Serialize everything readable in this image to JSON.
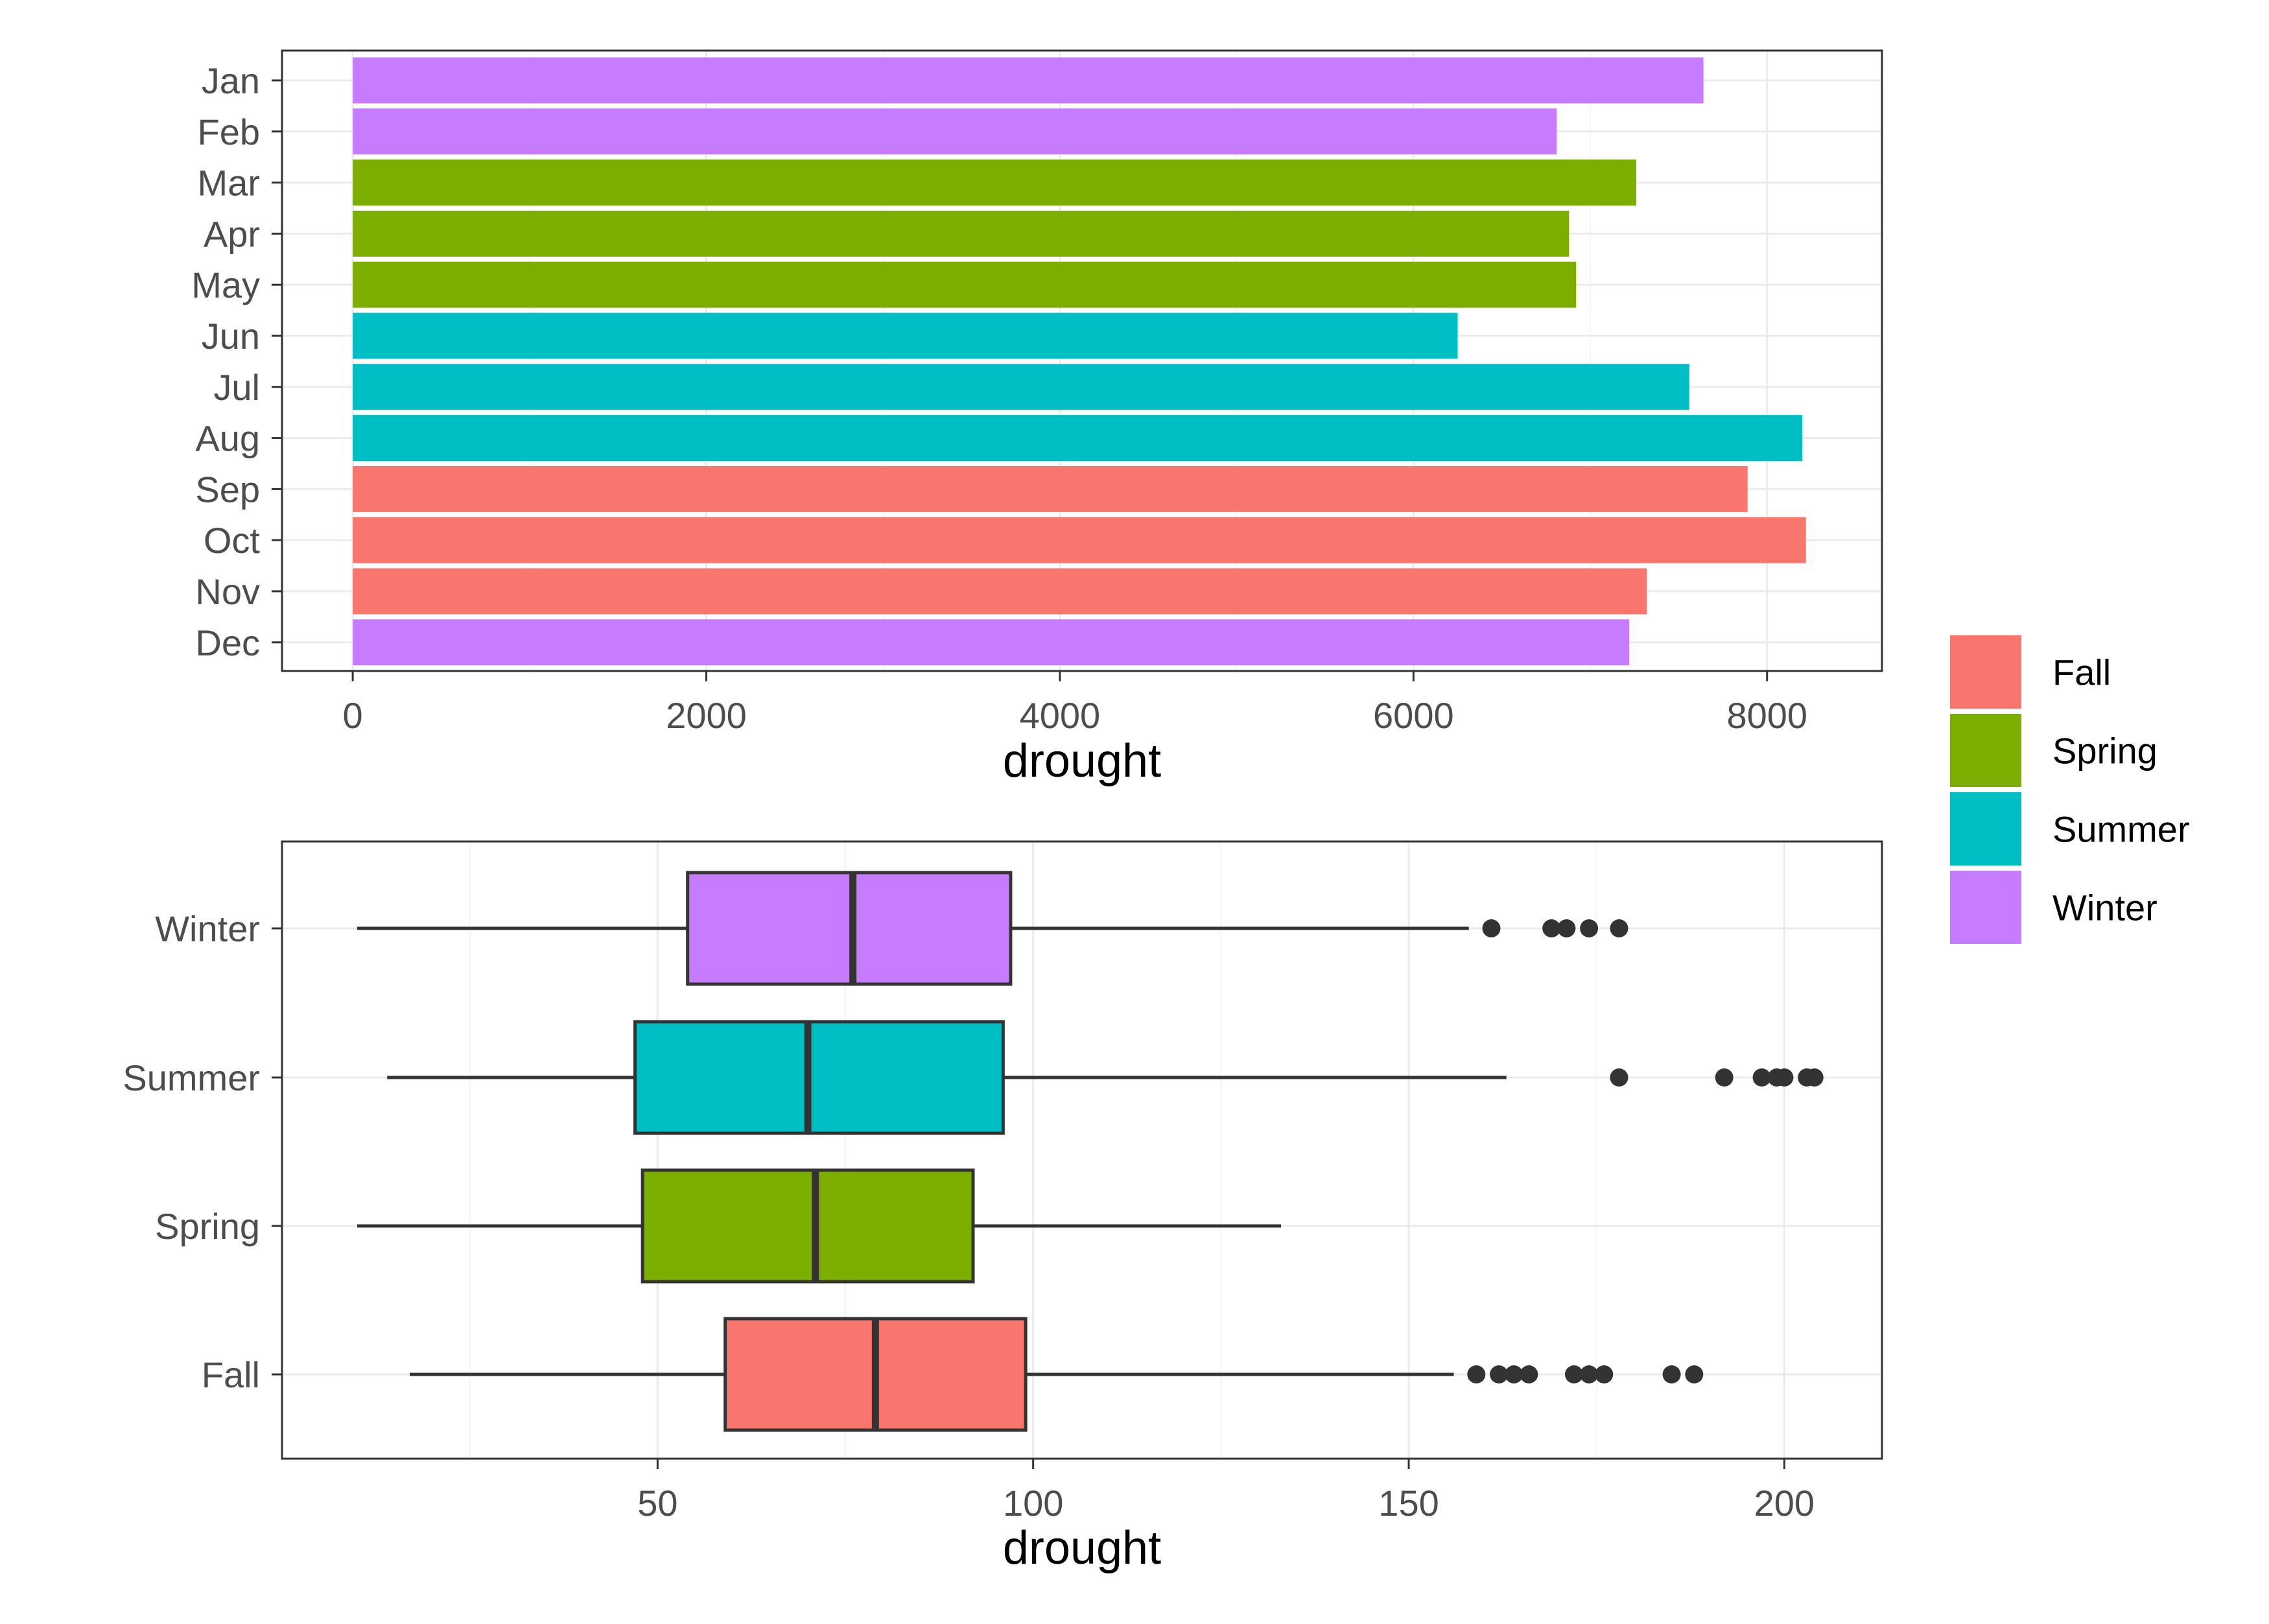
{
  "chart_data": [
    {
      "type": "bar",
      "orientation": "horizontal",
      "title": "",
      "xlabel": "drought",
      "ylabel": "",
      "categories": [
        "Jan",
        "Feb",
        "Mar",
        "Apr",
        "May",
        "Jun",
        "Jul",
        "Aug",
        "Sep",
        "Oct",
        "Nov",
        "Dec"
      ],
      "values": [
        7640,
        6810,
        7260,
        6880,
        6920,
        6250,
        7560,
        8200,
        7890,
        8220,
        7320,
        7220
      ],
      "season": [
        "Winter",
        "Winter",
        "Spring",
        "Spring",
        "Spring",
        "Summer",
        "Summer",
        "Summer",
        "Fall",
        "Fall",
        "Fall",
        "Winter"
      ],
      "xlim": [
        -400,
        8650
      ],
      "xticks": [
        0,
        2000,
        4000,
        6000,
        8000
      ],
      "xtick_labels": [
        "0",
        "2000",
        "4000",
        "6000",
        "8000"
      ],
      "grid": true
    },
    {
      "type": "boxplot",
      "orientation": "horizontal",
      "title": "",
      "xlabel": "drought",
      "ylabel": "",
      "categories": [
        "Winter",
        "Summer",
        "Spring",
        "Fall"
      ],
      "boxes": [
        {
          "category": "Winter",
          "whisker_low": 10,
          "q1": 54,
          "median": 76,
          "q3": 97,
          "whisker_high": 158,
          "outliers": [
            161,
            169,
            171,
            174,
            178
          ]
        },
        {
          "category": "Summer",
          "whisker_low": 14,
          "q1": 47,
          "median": 70,
          "q3": 96,
          "whisker_high": 163,
          "outliers": [
            178,
            192,
            197,
            199,
            200,
            203,
            204
          ]
        },
        {
          "category": "Spring",
          "whisker_low": 10,
          "q1": 48,
          "median": 71,
          "q3": 92,
          "whisker_high": 133,
          "outliers": []
        },
        {
          "category": "Fall",
          "whisker_low": 17,
          "q1": 59,
          "median": 79,
          "q3": 99,
          "whisker_high": 156,
          "outliers": [
            159,
            162,
            164,
            166,
            172,
            174,
            176,
            185,
            188
          ]
        }
      ],
      "xlim": [
        0,
        213
      ],
      "xticks": [
        50,
        100,
        150,
        200
      ],
      "xtick_labels": [
        "50",
        "100",
        "150",
        "200"
      ],
      "grid": true
    }
  ],
  "legend": {
    "position": "right",
    "items": [
      {
        "label": "Fall",
        "color": "#F8766D"
      },
      {
        "label": "Spring",
        "color": "#7CAE00"
      },
      {
        "label": "Summer",
        "color": "#00BFC4"
      },
      {
        "label": "Winter",
        "color": "#C77CFF"
      }
    ]
  },
  "colors": {
    "Fall": "#F8766D",
    "Spring": "#7CAE00",
    "Summer": "#00BFC4",
    "Winter": "#C77CFF"
  }
}
